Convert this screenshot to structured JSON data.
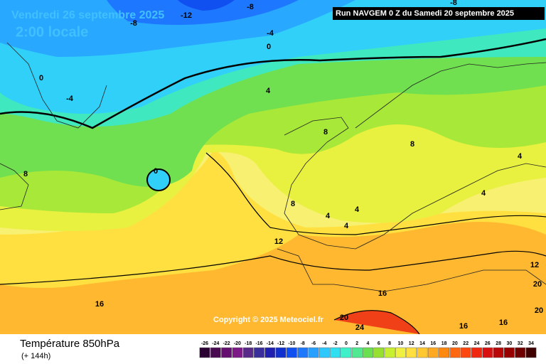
{
  "header": {
    "title": "Vendredi 26 septembre 2025",
    "subtitle": "2:00 locale",
    "run": "Run NAVGEM 0 Z du Samedi 20 septembre 2025"
  },
  "copyright": "Copyright © 2025 Meteociel.fr",
  "footer": {
    "title": "Température 850hPa",
    "lead": "(+ 144h)"
  },
  "map": {
    "contour_labels": [
      -8,
      -8,
      -12,
      -8,
      -4,
      0,
      0,
      -4,
      4,
      8,
      8,
      4,
      0,
      8,
      4,
      8,
      4,
      4,
      4,
      12,
      12,
      16,
      16,
      16,
      16,
      20,
      20,
      20,
      24
    ]
  },
  "legend": {
    "ticks": [
      -26,
      -24,
      -22,
      -20,
      -18,
      -16,
      -14,
      -12,
      -10,
      -8,
      -6,
      -4,
      -2,
      0,
      2,
      4,
      6,
      8,
      10,
      12,
      14,
      16,
      18,
      20,
      22,
      24,
      26,
      28,
      30,
      32,
      34
    ],
    "colors": [
      "#2b0033",
      "#4a0a52",
      "#651070",
      "#7e1a88",
      "#5a2a8a",
      "#3a2f9a",
      "#2020b0",
      "#1030d0",
      "#1050f0",
      "#1e78ff",
      "#28a0ff",
      "#2ec8ff",
      "#30e0f0",
      "#40f0c8",
      "#50e890",
      "#6ae050",
      "#98e030",
      "#c8f030",
      "#f0f040",
      "#ffe040",
      "#ffc830",
      "#ffa820",
      "#ff8810",
      "#ff6810",
      "#ff4810",
      "#f02810",
      "#d81010",
      "#b80808",
      "#980000",
      "#700000",
      "#400000"
    ]
  }
}
